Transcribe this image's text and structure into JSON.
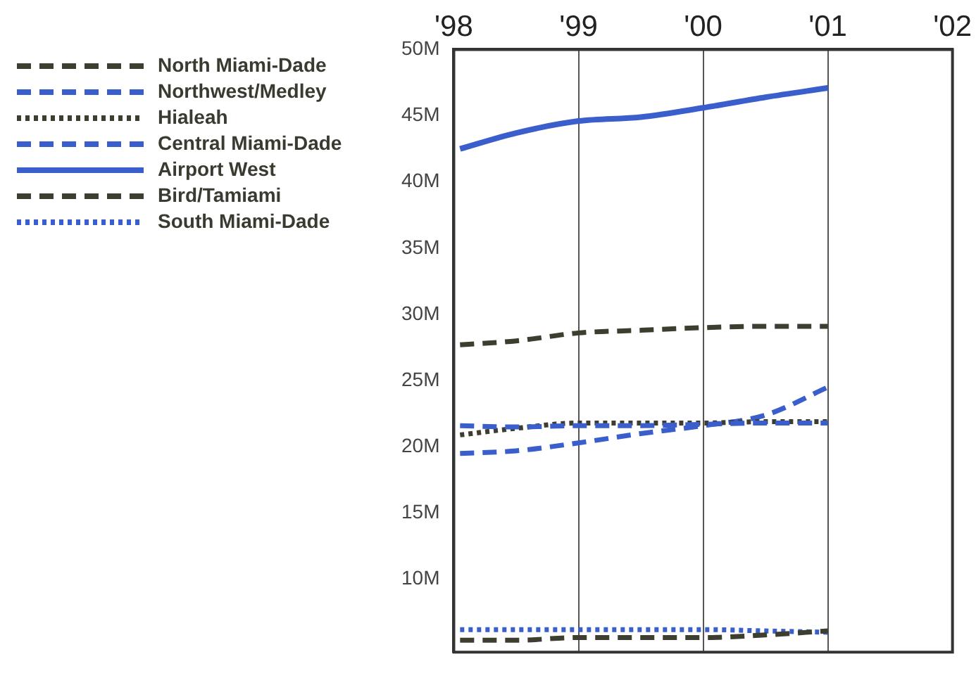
{
  "chart_data": {
    "type": "line",
    "x": [
      1998.05,
      1998.5,
      1999,
      1999.5,
      2000,
      2000.5,
      2001
    ],
    "xlim": [
      1998,
      2002
    ],
    "xticks": [
      {
        "value": 1998,
        "label": "'98"
      },
      {
        "value": 1999,
        "label": "'99"
      },
      {
        "value": 2000,
        "label": "'00"
      },
      {
        "value": 2001,
        "label": "'01"
      },
      {
        "value": 2002,
        "label": "'02"
      }
    ],
    "ylim": [
      4.5,
      50
    ],
    "yticks": [
      {
        "value": 10,
        "label": "10M"
      },
      {
        "value": 15,
        "label": "15M"
      },
      {
        "value": 20,
        "label": "20M"
      },
      {
        "value": 25,
        "label": "25M"
      },
      {
        "value": 30,
        "label": "30M"
      },
      {
        "value": 35,
        "label": "35M"
      },
      {
        "value": 40,
        "label": "40M"
      },
      {
        "value": 45,
        "label": "45M"
      },
      {
        "value": 50,
        "label": "50M"
      }
    ],
    "grid": "x",
    "legend": "left",
    "marker": "none",
    "series": [
      {
        "name": "North Miami-Dade",
        "color": "#3d3d30",
        "line_style": "dashed",
        "values": [
          5.4,
          5.4,
          5.6,
          5.6,
          5.6,
          5.8,
          6.1
        ]
      },
      {
        "name": "Northwest/Medley",
        "color": "#3a5fcd",
        "line_style": "dashed",
        "values": [
          21.6,
          21.5,
          21.6,
          21.6,
          21.7,
          21.8,
          21.8
        ]
      },
      {
        "name": "Hialeah",
        "color": "#3d3d30",
        "line_style": "dotted",
        "values": [
          20.9,
          21.4,
          21.8,
          21.8,
          21.8,
          21.9,
          21.9
        ]
      },
      {
        "name": "Central Miami-Dade",
        "color": "#3a5fcd",
        "line_style": "dashed",
        "values": [
          19.5,
          19.7,
          20.3,
          21.0,
          21.6,
          22.4,
          24.5
        ]
      },
      {
        "name": "Airport West",
        "color": "#3a5fcd",
        "line_style": "solid",
        "values": [
          42.5,
          43.7,
          44.6,
          44.9,
          45.6,
          46.4,
          47.1
        ]
      },
      {
        "name": "Bird/Tamiami",
        "color": "#3d3d30",
        "line_style": "dashed",
        "values": [
          27.7,
          28.0,
          28.6,
          28.8,
          29.0,
          29.1,
          29.1
        ]
      },
      {
        "name": "South Miami-Dade",
        "color": "#3a5fcd",
        "line_style": "dotted",
        "values": [
          6.2,
          6.2,
          6.2,
          6.2,
          6.2,
          6.1,
          6.0
        ]
      }
    ]
  }
}
